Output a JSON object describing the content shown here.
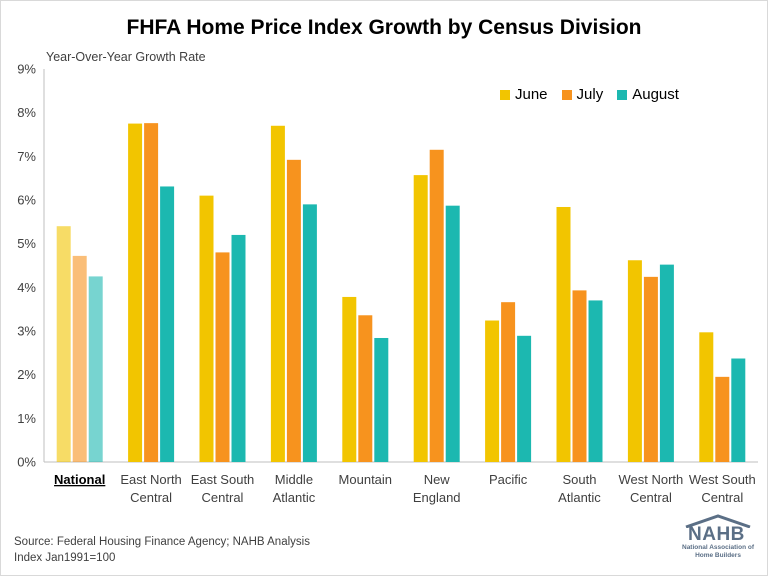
{
  "title": "FHFA Home Price Index Growth by Census Division",
  "source_lines": [
    "Source: Federal Housing Finance Agency; NAHB Analysis",
    "Index Jan1991=100"
  ],
  "logo": {
    "word": "NAHB",
    "sub": "National Association of Home Builders"
  },
  "colors": {
    "June": "#f2c500",
    "July": "#f7931e",
    "August": "#1cb8b0",
    "axis": "#bfbfbf"
  },
  "chart_data": {
    "type": "bar",
    "title": "FHFA Home Price Index Growth by Census Division",
    "ylabel": "Year-Over-Year Growth Rate",
    "xlabel": "",
    "ylim": [
      0,
      9
    ],
    "yticks": [
      "0%",
      "1%",
      "2%",
      "3%",
      "4%",
      "5%",
      "6%",
      "7%",
      "8%",
      "9%"
    ],
    "grid": false,
    "legend_position": "top-right",
    "categories": [
      [
        "National"
      ],
      [
        "East North",
        "Central"
      ],
      [
        "East South",
        "Central"
      ],
      [
        "Middle",
        "Atlantic"
      ],
      [
        "Mountain"
      ],
      [
        "New",
        "England"
      ],
      [
        "Pacific"
      ],
      [
        "South",
        "Atlantic"
      ],
      [
        "West North",
        "Central"
      ],
      [
        "West South",
        "Central"
      ]
    ],
    "highlight_category": "National",
    "series": [
      {
        "name": "June",
        "values": [
          5.4,
          7.75,
          6.1,
          7.7,
          3.78,
          6.57,
          3.24,
          5.84,
          4.62,
          2.97
        ]
      },
      {
        "name": "July",
        "values": [
          4.72,
          7.76,
          4.8,
          6.92,
          3.36,
          7.15,
          3.66,
          3.93,
          4.24,
          1.95
        ]
      },
      {
        "name": "August",
        "values": [
          4.25,
          6.31,
          5.2,
          5.9,
          2.84,
          5.87,
          2.89,
          3.7,
          4.52,
          2.37
        ]
      }
    ]
  }
}
